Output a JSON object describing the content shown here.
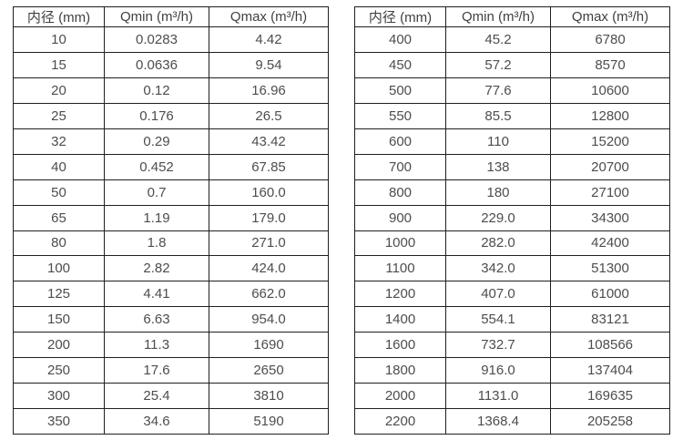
{
  "page": {
    "background_color": "#ffffff",
    "border_color": "#1f1f1f",
    "text_color": "#4d4d4d"
  },
  "columns": {
    "diameter": "内径 (mm)",
    "qmin": "Qmin (m³/h)",
    "qmax": "Qmax (m³/h)"
  },
  "chart_data": {
    "type": "table",
    "tables": [
      {
        "headers": [
          "内径 (mm)",
          "Qmin (m³/h)",
          "Qmax (m³/h)"
        ],
        "rows": [
          [
            "10",
            "0.0283",
            "4.42"
          ],
          [
            "15",
            "0.0636",
            "9.54"
          ],
          [
            "20",
            "0.12",
            "16.96"
          ],
          [
            "25",
            "0.176",
            "26.5"
          ],
          [
            "32",
            "0.29",
            "43.42"
          ],
          [
            "40",
            "0.452",
            "67.85"
          ],
          [
            "50",
            "0.7",
            "160.0"
          ],
          [
            "65",
            "1.19",
            "179.0"
          ],
          [
            "80",
            "1.8",
            "271.0"
          ],
          [
            "100",
            "2.82",
            "424.0"
          ],
          [
            "125",
            "4.41",
            "662.0"
          ],
          [
            "150",
            "6.63",
            "954.0"
          ],
          [
            "200",
            "11.3",
            "1690"
          ],
          [
            "250",
            "17.6",
            "2650"
          ],
          [
            "300",
            "25.4",
            "3810"
          ],
          [
            "350",
            "34.6",
            "5190"
          ]
        ]
      },
      {
        "headers": [
          "内径 (mm)",
          "Qmin (m³/h)",
          "Qmax (m³/h)"
        ],
        "rows": [
          [
            "400",
            "45.2",
            "6780"
          ],
          [
            "450",
            "57.2",
            "8570"
          ],
          [
            "500",
            "77.6",
            "10600"
          ],
          [
            "550",
            "85.5",
            "12800"
          ],
          [
            "600",
            "110",
            "15200"
          ],
          [
            "700",
            "138",
            "20700"
          ],
          [
            "800",
            "180",
            "27100"
          ],
          [
            "900",
            "229.0",
            "34300"
          ],
          [
            "1000",
            "282.0",
            "42400"
          ],
          [
            "1100",
            "342.0",
            "51300"
          ],
          [
            "1200",
            "407.0",
            "61000"
          ],
          [
            "1400",
            "554.1",
            "83121"
          ],
          [
            "1600",
            "732.7",
            "108566"
          ],
          [
            "1800",
            "916.0",
            "137404"
          ],
          [
            "2000",
            "1131.0",
            "169635"
          ],
          [
            "2200",
            "1368.4",
            "205258"
          ]
        ]
      }
    ]
  }
}
